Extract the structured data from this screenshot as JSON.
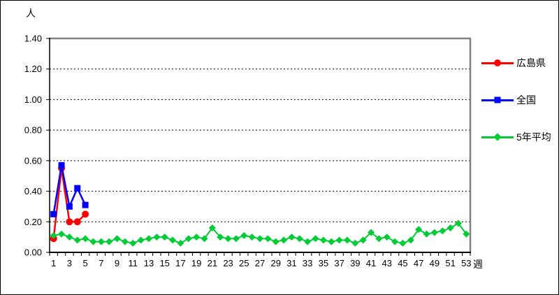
{
  "page": {
    "background": "#FFFFFF",
    "border_color": "#000000"
  },
  "axis": {
    "y_unit_label": "人",
    "x_unit_label": "週",
    "y_tick_labels": [
      "0.00",
      "0.20",
      "0.40",
      "0.60",
      "0.80",
      "1.00",
      "1.20",
      "1.40"
    ],
    "x_tick_labels": [
      1,
      3,
      5,
      7,
      9,
      11,
      13,
      15,
      17,
      19,
      21,
      23,
      25,
      27,
      29,
      31,
      33,
      35,
      37,
      39,
      41,
      43,
      45,
      47,
      49,
      51,
      53
    ]
  },
  "chart_data": {
    "type": "line",
    "title": "",
    "xlabel": "週",
    "ylabel": "人",
    "x": [
      1,
      2,
      3,
      4,
      5,
      6,
      7,
      8,
      9,
      10,
      11,
      12,
      13,
      14,
      15,
      16,
      17,
      18,
      19,
      20,
      21,
      22,
      23,
      24,
      25,
      26,
      27,
      28,
      29,
      30,
      31,
      32,
      33,
      34,
      35,
      36,
      37,
      38,
      39,
      40,
      41,
      42,
      43,
      44,
      45,
      46,
      47,
      48,
      49,
      50,
      51,
      52,
      53
    ],
    "ylim": [
      0,
      1.4
    ],
    "ytick_interval": 0.2,
    "grid": "horizontal-dashed",
    "legend_position": "right-outside",
    "plot_border_color": "#808080",
    "series": [
      {
        "name": "広島県",
        "color": "#FF0000",
        "marker": "circle",
        "values": [
          0.09,
          0.55,
          0.2,
          0.2,
          0.25
        ]
      },
      {
        "name": "全国",
        "color": "#0000FF",
        "marker": "square",
        "values": [
          0.25,
          0.57,
          0.3,
          0.42,
          0.31
        ]
      },
      {
        "name": "5年平均",
        "color": "#00CC33",
        "marker": "diamond",
        "values": [
          0.11,
          0.12,
          0.1,
          0.08,
          0.09,
          0.07,
          0.07,
          0.07,
          0.09,
          0.07,
          0.06,
          0.08,
          0.09,
          0.1,
          0.1,
          0.08,
          0.06,
          0.09,
          0.1,
          0.09,
          0.16,
          0.1,
          0.09,
          0.09,
          0.11,
          0.1,
          0.09,
          0.09,
          0.07,
          0.08,
          0.1,
          0.09,
          0.07,
          0.09,
          0.08,
          0.07,
          0.08,
          0.08,
          0.06,
          0.08,
          0.13,
          0.09,
          0.1,
          0.07,
          0.06,
          0.08,
          0.15,
          0.12,
          0.13,
          0.14,
          0.16,
          0.19,
          0.12
        ]
      }
    ]
  }
}
